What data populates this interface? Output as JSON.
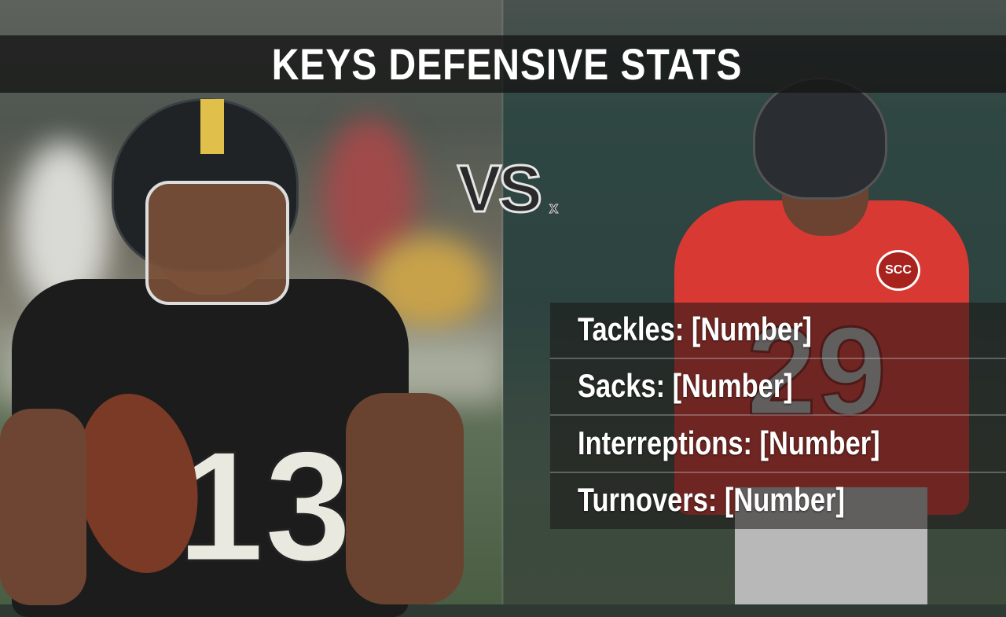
{
  "title": "KEYS DEFENSIVE STATS",
  "vs": {
    "label": "VS",
    "suffix": "x"
  },
  "left_player": {
    "jersey_number": "13",
    "jersey_color": "#1c1c1c",
    "helmet_color": "#1f2326",
    "stripe_color": "#e0c04a"
  },
  "right_player": {
    "jersey_number": "29",
    "jersey_color": "#d83a33",
    "helmet_color": "#2a2d31",
    "logo": "SCC"
  },
  "stats": [
    {
      "label": "Tackles: [Number]"
    },
    {
      "label": "Sacks: [Number]"
    },
    {
      "label": "Interreptions: [Number]"
    },
    {
      "label": "Turnovers: [Number]"
    }
  ]
}
